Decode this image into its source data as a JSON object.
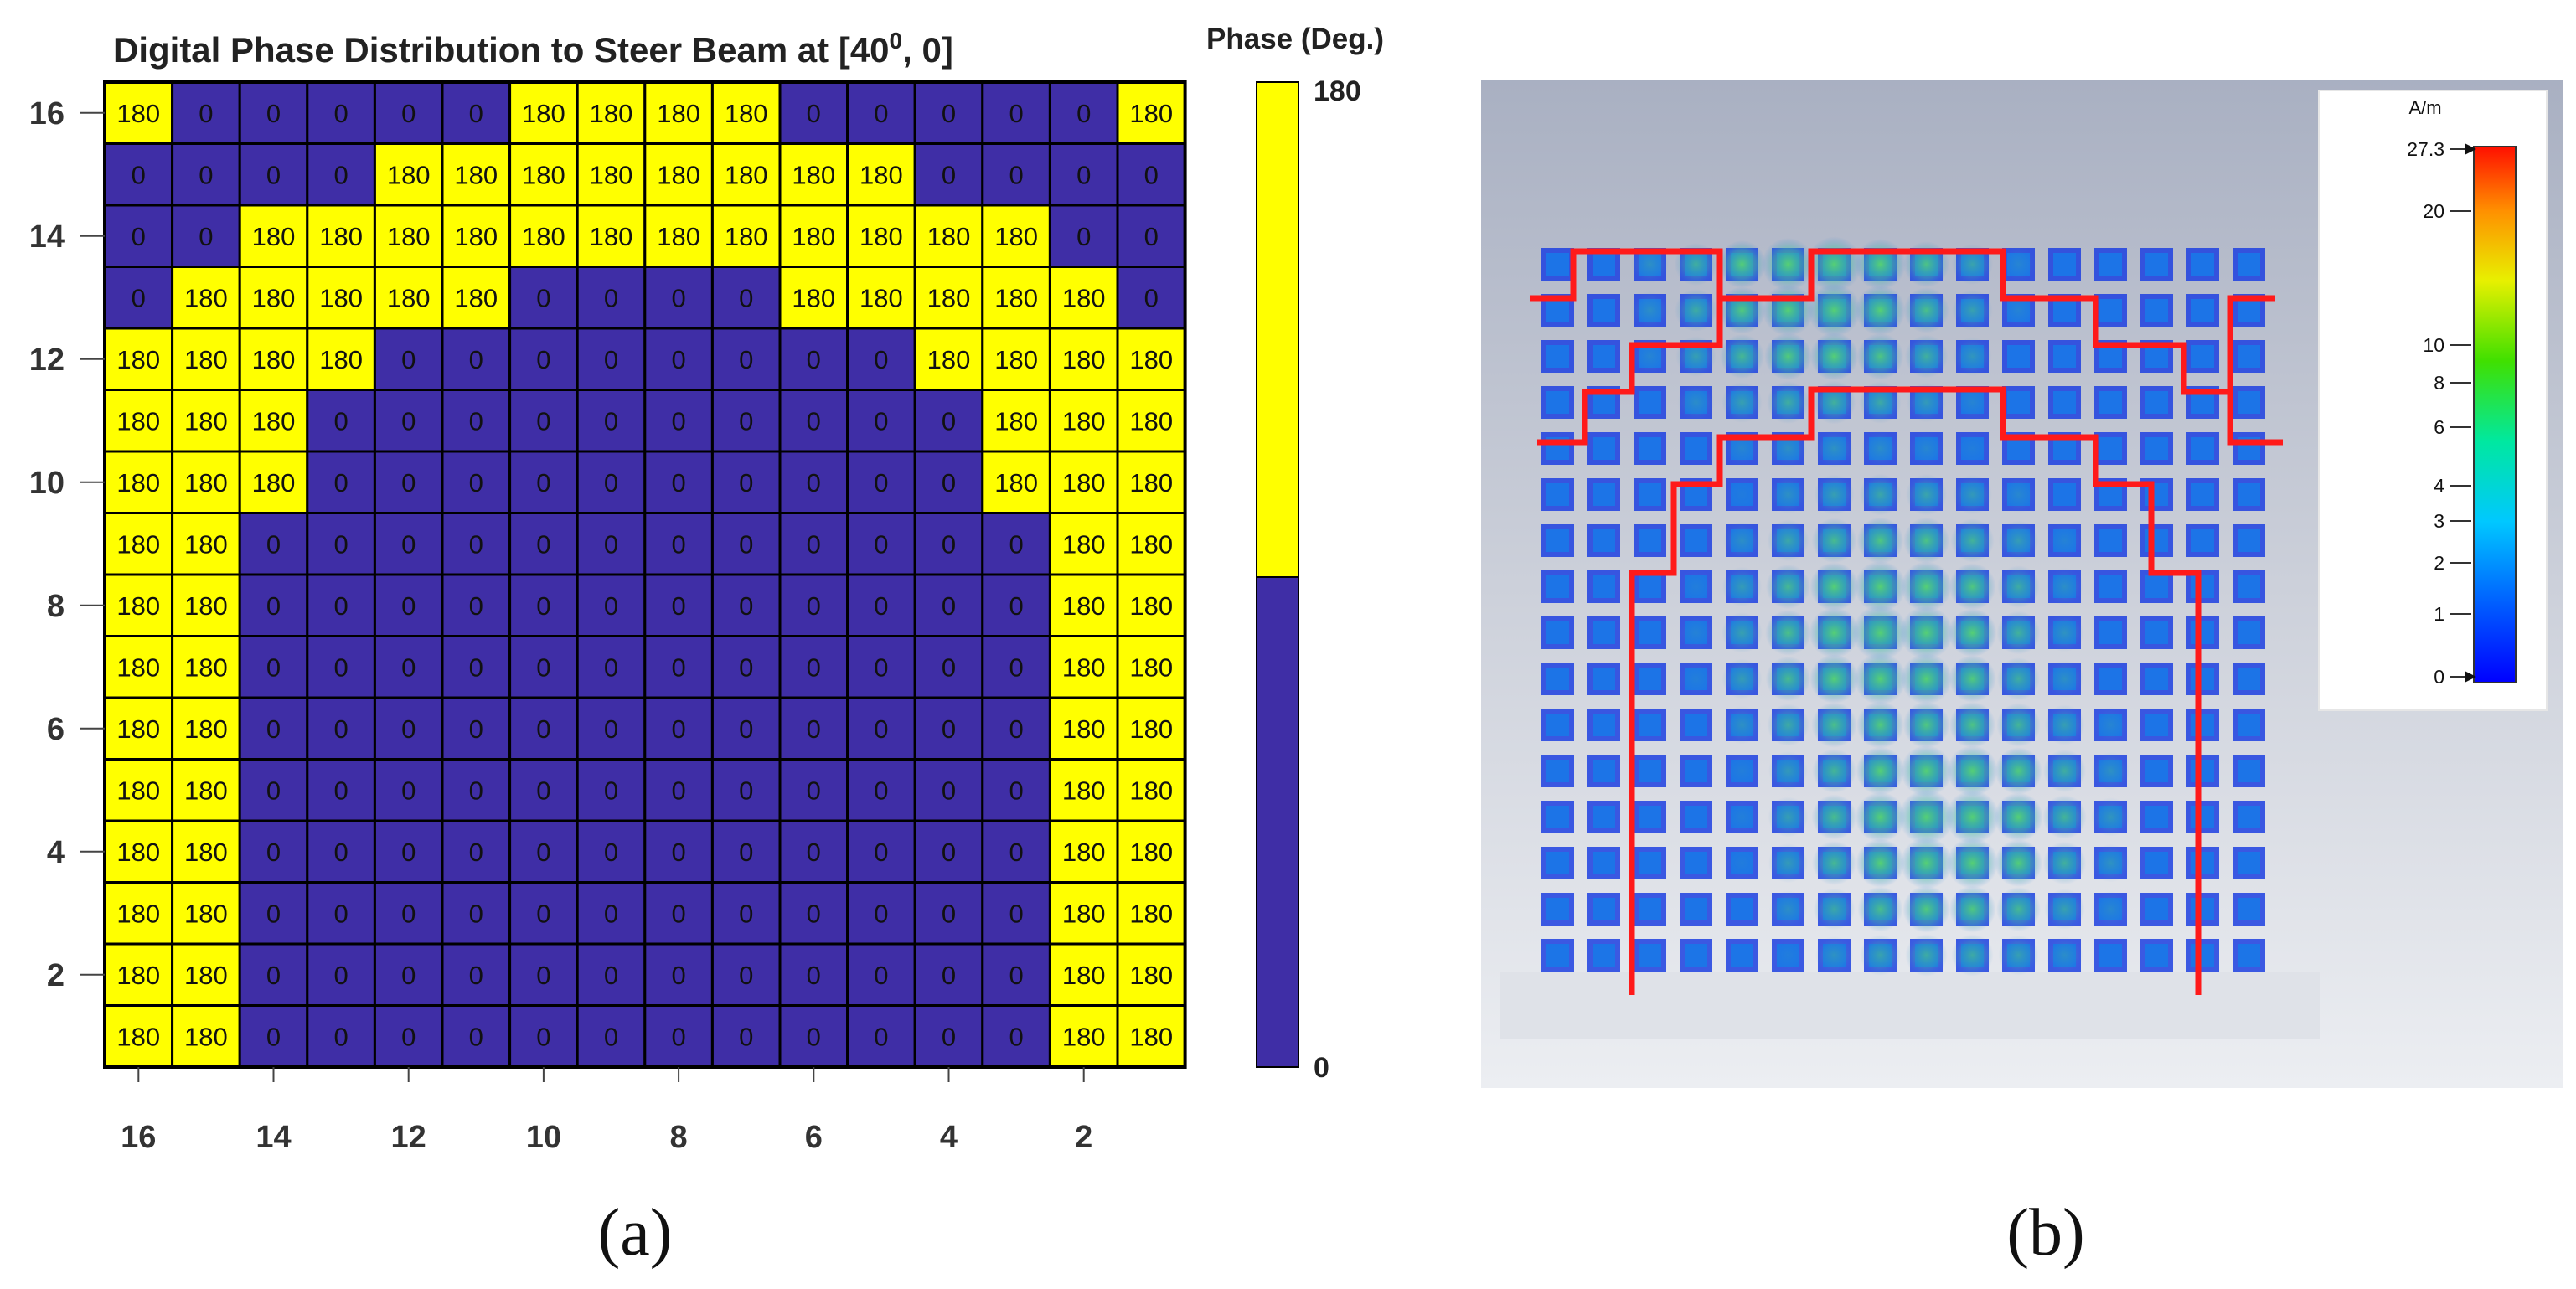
{
  "panel_a": {
    "title": "Digital Phase Distribution to Steer Beam at [40",
    "title_superscript": "0",
    "title_end": ", 0]",
    "caption": "(a)"
  },
  "panel_b": {
    "caption": "(b)",
    "legend_unit": "A/m",
    "legend_ticks": [
      "27.3",
      "20",
      "10",
      "8",
      "6",
      "4",
      "3",
      "2",
      "1",
      "0"
    ]
  },
  "colors": {
    "phase_180": "#ffff00",
    "phase_0": "#3f2ea6",
    "grid_line": "#000000",
    "boundary": "#ff1a1a"
  },
  "chart_data": [
    {
      "type": "heatmap",
      "title": "Digital Phase Distribution to Steer Beam at [40^0, 0]",
      "x_tick_labels": [
        "16",
        "14",
        "12",
        "10",
        "8",
        "6",
        "4",
        "2"
      ],
      "y_tick_labels": [
        "16",
        "14",
        "12",
        "10",
        "8",
        "6",
        "4",
        "2"
      ],
      "x_order": "descending",
      "y_order": "ascending",
      "colorbar_label": "Phase (Deg.)",
      "colorbar_ticks": [
        "180",
        "0"
      ],
      "colorscale": [
        "#3f2ea6",
        "#ffff00"
      ],
      "rows_top_to_bottom": [
        [
          180,
          0,
          0,
          0,
          0,
          0,
          180,
          180,
          180,
          180,
          0,
          0,
          0,
          0,
          0,
          180
        ],
        [
          0,
          0,
          0,
          0,
          180,
          180,
          180,
          180,
          180,
          180,
          180,
          180,
          0,
          0,
          0,
          0
        ],
        [
          0,
          0,
          180,
          180,
          180,
          180,
          180,
          180,
          180,
          180,
          180,
          180,
          180,
          180,
          0,
          0
        ],
        [
          0,
          180,
          180,
          180,
          180,
          180,
          0,
          0,
          0,
          0,
          180,
          180,
          180,
          180,
          180,
          0
        ],
        [
          180,
          180,
          180,
          180,
          0,
          0,
          0,
          0,
          0,
          0,
          0,
          0,
          180,
          180,
          180,
          180
        ],
        [
          180,
          180,
          180,
          0,
          0,
          0,
          0,
          0,
          0,
          0,
          0,
          0,
          0,
          180,
          180,
          180
        ],
        [
          180,
          180,
          180,
          0,
          0,
          0,
          0,
          0,
          0,
          0,
          0,
          0,
          0,
          180,
          180,
          180
        ],
        [
          180,
          180,
          0,
          0,
          0,
          0,
          0,
          0,
          0,
          0,
          0,
          0,
          0,
          0,
          180,
          180
        ],
        [
          180,
          180,
          0,
          0,
          0,
          0,
          0,
          0,
          0,
          0,
          0,
          0,
          0,
          0,
          180,
          180
        ],
        [
          180,
          180,
          0,
          0,
          0,
          0,
          0,
          0,
          0,
          0,
          0,
          0,
          0,
          0,
          180,
          180
        ],
        [
          180,
          180,
          0,
          0,
          0,
          0,
          0,
          0,
          0,
          0,
          0,
          0,
          0,
          0,
          180,
          180
        ],
        [
          180,
          180,
          0,
          0,
          0,
          0,
          0,
          0,
          0,
          0,
          0,
          0,
          0,
          0,
          180,
          180
        ],
        [
          180,
          180,
          0,
          0,
          0,
          0,
          0,
          0,
          0,
          0,
          0,
          0,
          0,
          0,
          180,
          180
        ],
        [
          180,
          180,
          0,
          0,
          0,
          0,
          0,
          0,
          0,
          0,
          0,
          0,
          0,
          0,
          180,
          180
        ],
        [
          180,
          180,
          0,
          0,
          0,
          0,
          0,
          0,
          0,
          0,
          0,
          0,
          0,
          0,
          180,
          180
        ],
        [
          180,
          180,
          0,
          0,
          0,
          0,
          0,
          0,
          0,
          0,
          0,
          0,
          0,
          0,
          180,
          180
        ]
      ]
    }
  ]
}
